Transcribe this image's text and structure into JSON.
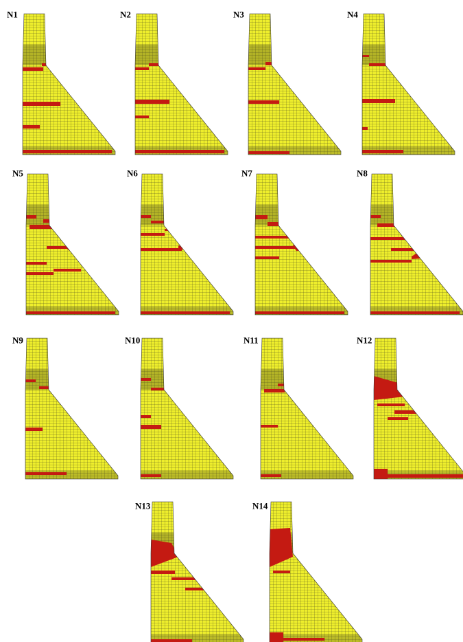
{
  "panels": [
    {
      "label": "N1"
    },
    {
      "label": "N2"
    },
    {
      "label": "N3"
    },
    {
      "label": "N4"
    },
    {
      "label": "N5"
    },
    {
      "label": "N6"
    },
    {
      "label": "N7"
    },
    {
      "label": "N8"
    },
    {
      "label": "N9"
    },
    {
      "label": "N10"
    },
    {
      "label": "N11"
    },
    {
      "label": "N12"
    },
    {
      "label": "N13"
    },
    {
      "label": "N14"
    }
  ]
}
